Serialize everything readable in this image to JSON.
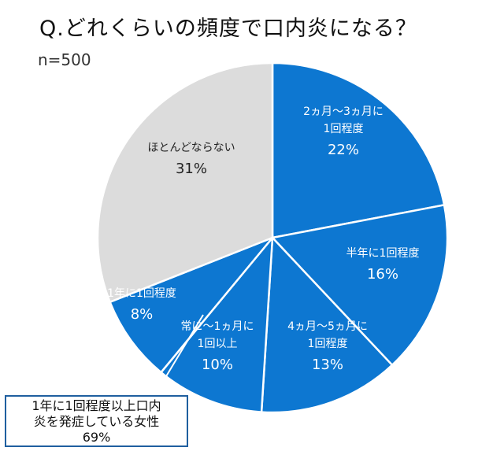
{
  "header": {
    "title": "Q.どれくらいの頻度で口内炎になる？",
    "subtitle": "n=500"
  },
  "colors": {
    "blue": "#0d77d1",
    "gray": "#dcdcdc",
    "border": "#ffffff",
    "text_on_blue": "#ffffff",
    "text_on_gray": "#222222",
    "callout_border": "#1f5f9f"
  },
  "chart_data": {
    "type": "pie",
    "title": "Q.どれくらいの頻度で口内炎になる？",
    "subtitle": "n=500",
    "slices": [
      {
        "label_lines": [
          "2ヵ月～3ヵ月に",
          "1回程度"
        ],
        "value": 22,
        "value_label": "22%",
        "color": "#0d77d1"
      },
      {
        "label_lines": [
          "半年に1回程度"
        ],
        "value": 16,
        "value_label": "16%",
        "color": "#0d77d1"
      },
      {
        "label_lines": [
          "4ヵ月～5ヵ月に",
          "1回程度"
        ],
        "value": 13,
        "value_label": "13%",
        "color": "#0d77d1"
      },
      {
        "label_lines": [
          "常に～1ヵ月に",
          "1回以上"
        ],
        "value": 10,
        "value_label": "10%",
        "color": "#0d77d1"
      },
      {
        "label_lines": [
          "1年に1回程度"
        ],
        "value": 8,
        "value_label": "8%",
        "color": "#0d77d1"
      },
      {
        "label_lines": [
          "ほとんどならない"
        ],
        "value": 31,
        "value_label": "31%",
        "color": "#dcdcdc"
      }
    ],
    "annotation": {
      "lines": [
        "1年に1回程度以上口内",
        "炎を発症している女性",
        "69%"
      ]
    }
  }
}
